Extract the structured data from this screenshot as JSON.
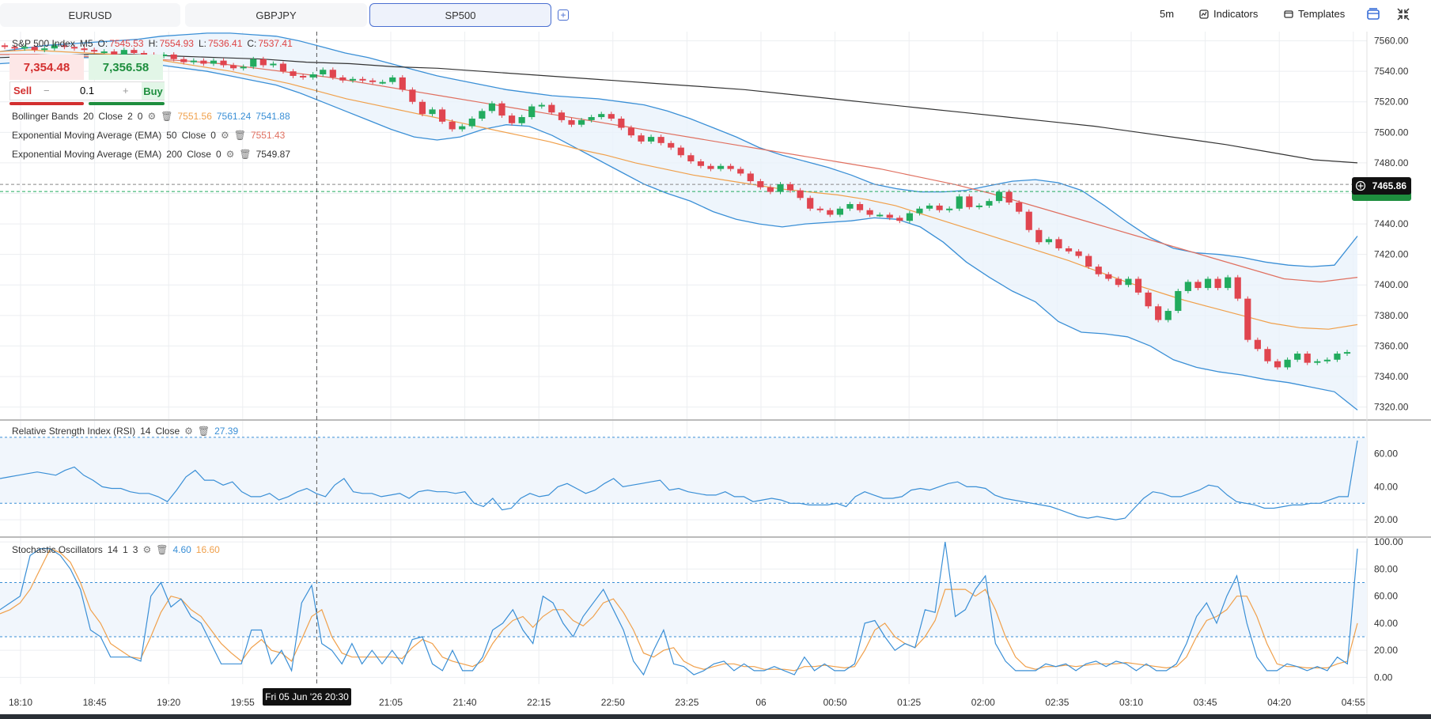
{
  "tabs": [
    {
      "label": "EURUSD",
      "active": false
    },
    {
      "label": "GBPJPY",
      "active": false
    },
    {
      "label": "SP500",
      "active": true
    }
  ],
  "add_tab_label": "+",
  "toolbar": {
    "timeframe": "5m",
    "indicators_label": "Indicators",
    "templates_label": "Templates"
  },
  "symbol_legend": {
    "name": "S&P 500 Index",
    "timeframe": "M5",
    "open_label": "O:",
    "open": "7545.53",
    "high_label": "H:",
    "high": "7554.93",
    "low_label": "L:",
    "low": "7536.41",
    "close_label": "C:",
    "close": "7537.41"
  },
  "trade_panel": {
    "sell_price": "7,354.48",
    "buy_price": "7,356.58",
    "sell_label": "Sell",
    "buy_label": "Buy",
    "quantity": "0.1",
    "minus": "−",
    "plus": "+"
  },
  "indicators": {
    "bb": {
      "name": "Bollinger Bands",
      "p1": "20",
      "p2": "Close",
      "p3": "2",
      "p4": "0",
      "v1": "7551.56",
      "v2": "7561.24",
      "v3": "7541.88"
    },
    "ema50": {
      "name": "Exponential Moving Average (EMA)",
      "p1": "50",
      "p2": "Close",
      "p3": "0",
      "v1": "7551.43"
    },
    "ema200": {
      "name": "Exponential Moving Average (EMA)",
      "p1": "200",
      "p2": "Close",
      "p3": "0",
      "v1": "7549.87"
    },
    "rsi": {
      "name": "Relative Strength Index (RSI)",
      "p1": "14",
      "p2": "Close",
      "v1": "27.39"
    },
    "stoch": {
      "name": "Stochastic Oscillators",
      "p1": "14",
      "p2": "1",
      "p3": "3",
      "v1": "4.60",
      "v2": "16.60"
    }
  },
  "current_price": "7465.86",
  "crosshair_date": "Fri 05 Jun '26 20:30",
  "colors": {
    "up": "#22ab5e",
    "down": "#e0454f",
    "bb": "#3a8fd6",
    "ema50": "#f0a04b",
    "ema200": "#e07060",
    "ema_long": "#333333",
    "rsi": "#3a8fd6",
    "stoch_k": "#3a8fd6",
    "stoch_d": "#f0a04b"
  },
  "chart_data": {
    "type": "candlestick",
    "x_ticks": [
      "18:10",
      "18:45",
      "19:20",
      "19:55",
      "20:30",
      "21:05",
      "21:40",
      "22:15",
      "22:50",
      "23:25",
      "06",
      "00:50",
      "01:25",
      "02:00",
      "02:35",
      "03:10",
      "03:45",
      "04:20",
      "04:55"
    ],
    "main_y_ticks": [
      "7560.00",
      "7540.00",
      "7520.00",
      "7500.00",
      "7480.00",
      "7460.00",
      "7440.00",
      "7420.00",
      "7400.00",
      "7380.00",
      "7360.00",
      "7340.00",
      "7320.00"
    ],
    "main_ylim": [
      7312,
      7566
    ],
    "rsi_y_ticks": [
      "60.00",
      "40.00",
      "20.00"
    ],
    "rsi_ylim": [
      10,
      80
    ],
    "rsi_levels": [
      70,
      30
    ],
    "stoch_y_ticks": [
      "100.00",
      "80.00",
      "60.00",
      "40.00",
      "20.00",
      "0.00"
    ],
    "stoch_ylim": [
      -5,
      103
    ],
    "stoch_levels": [
      70,
      30
    ],
    "candles_close": [
      7556,
      7555,
      7556,
      7554,
      7555,
      7557,
      7556,
      7555,
      7554,
      7553,
      7553,
      7551,
      7554,
      7552,
      7551,
      7550,
      7551,
      7548,
      7546,
      7547,
      7545,
      7547,
      7544,
      7542,
      7543,
      7548,
      7544,
      7545,
      7540,
      7537,
      7536,
      7538,
      7541,
      7536,
      7534,
      7535,
      7534,
      7533,
      7533,
      7536,
      7528,
      7520,
      7512,
      7515,
      7507,
      7502,
      7504,
      7509,
      7514,
      7519,
      7511,
      7506,
      7510,
      7517,
      7518,
      7513,
      7508,
      7505,
      7508,
      7510,
      7512,
      7509,
      7503,
      7498,
      7494,
      7497,
      7493,
      7490,
      7485,
      7481,
      7478,
      7476,
      7478,
      7476,
      7473,
      7468,
      7464,
      7461,
      7466,
      7462,
      7457,
      7450,
      7449,
      7446,
      7450,
      7453,
      7449,
      7446,
      7446,
      7444,
      7442,
      7447,
      7450,
      7452,
      7449,
      7450,
      7458,
      7451,
      7452,
      7455,
      7461,
      7454,
      7448,
      7436,
      7428,
      7430,
      7424,
      7422,
      7419,
      7412,
      7407,
      7404,
      7400,
      7404,
      7395,
      7386,
      7377,
      7383,
      7396,
      7402,
      7398,
      7404,
      7398,
      7405,
      7391,
      7364,
      7358,
      7350,
      7346,
      7351,
      7355,
      7349,
      7350,
      7351,
      7355,
      7356
    ],
    "rsi": [
      45,
      46,
      47,
      48,
      49,
      48,
      47,
      50,
      52,
      47,
      44,
      40,
      39,
      39,
      37,
      36,
      36,
      34,
      31,
      38,
      46,
      50,
      44,
      44,
      41,
      43,
      37,
      34,
      34,
      36,
      32,
      34,
      37,
      39,
      36,
      34,
      41,
      45,
      37,
      36,
      36,
      34,
      35,
      36,
      33,
      37,
      38,
      37,
      37,
      36,
      37,
      30,
      28,
      33,
      26,
      27,
      33,
      36,
      34,
      35,
      40,
      42,
      39,
      36,
      38,
      42,
      45,
      40,
      41,
      42,
      43,
      44,
      38,
      39,
      37,
      36,
      35,
      35,
      37,
      34,
      34,
      31,
      32,
      33,
      32,
      30,
      30,
      29,
      29,
      29,
      30,
      28,
      34,
      37,
      35,
      33,
      33,
      34,
      38,
      39,
      38,
      40,
      42,
      43,
      40,
      40,
      39,
      35,
      33,
      32,
      31,
      30,
      29,
      28,
      26,
      24,
      22,
      21,
      22,
      21,
      20,
      21,
      27,
      33,
      37,
      36,
      34,
      34,
      36,
      38,
      41,
      40,
      35,
      31,
      30,
      29,
      27,
      27,
      28,
      29,
      29,
      30,
      30,
      32,
      34,
      34,
      68
    ],
    "stoch_k": [
      50,
      55,
      60,
      90,
      95,
      95,
      90,
      80,
      65,
      35,
      30,
      15,
      15,
      15,
      12,
      60,
      70,
      52,
      58,
      45,
      40,
      25,
      10,
      10,
      10,
      35,
      35,
      10,
      20,
      5,
      55,
      68,
      25,
      20,
      10,
      25,
      10,
      20,
      10,
      20,
      10,
      28,
      30,
      10,
      5,
      20,
      5,
      5,
      15,
      35,
      40,
      50,
      35,
      25,
      60,
      55,
      40,
      30,
      45,
      55,
      65,
      50,
      35,
      12,
      2,
      20,
      35,
      10,
      8,
      2,
      5,
      10,
      12,
      5,
      10,
      5,
      5,
      8,
      5,
      2,
      15,
      5,
      10,
      5,
      5,
      10,
      40,
      42,
      30,
      20,
      25,
      22,
      50,
      48,
      100,
      45,
      50,
      65,
      75,
      25,
      12,
      5,
      5,
      5,
      10,
      8,
      10,
      5,
      10,
      12,
      8,
      12,
      10,
      5,
      10,
      5,
      5,
      10,
      25,
      45,
      55,
      40,
      60,
      75,
      40,
      15,
      5,
      5,
      10,
      8,
      5,
      8,
      5,
      15,
      10,
      95
    ],
    "stoch_d": [
      47,
      50,
      55,
      65,
      80,
      95,
      92,
      85,
      70,
      50,
      40,
      25,
      20,
      15,
      14,
      30,
      48,
      60,
      58,
      50,
      45,
      35,
      25,
      18,
      12,
      22,
      28,
      20,
      18,
      12,
      28,
      45,
      50,
      30,
      18,
      15,
      15,
      15,
      15,
      15,
      14,
      22,
      28,
      25,
      15,
      12,
      10,
      8,
      12,
      25,
      35,
      42,
      45,
      37,
      45,
      50,
      50,
      42,
      38,
      45,
      55,
      58,
      48,
      35,
      18,
      15,
      20,
      22,
      12,
      8,
      6,
      8,
      10,
      10,
      8,
      8,
      6,
      6,
      6,
      5,
      8,
      8,
      9,
      8,
      7,
      8,
      20,
      35,
      40,
      30,
      25,
      22,
      30,
      42,
      65,
      65,
      65,
      60,
      65,
      50,
      30,
      15,
      8,
      6,
      8,
      8,
      9,
      8,
      9,
      10,
      10,
      10,
      11,
      10,
      9,
      8,
      7,
      8,
      15,
      30,
      42,
      45,
      50,
      60,
      60,
      45,
      25,
      10,
      8,
      8,
      7,
      7,
      7,
      10,
      12,
      40
    ],
    "bb_upper": [
      7553,
      7555,
      7557,
      7558,
      7559,
      7560,
      7561,
      7563,
      7564,
      7565,
      7565,
      7564,
      7563,
      7560,
      7556,
      7552,
      7549,
      7545,
      7541,
      7537,
      7534,
      7531,
      7528,
      7526,
      7524,
      7523,
      7522,
      7520,
      7518,
      7514,
      7509,
      7503,
      7497,
      7490,
      7485,
      7481,
      7477,
      7472,
      7466,
      7463,
      7461,
      7461,
      7462,
      7465,
      7468,
      7469,
      7467,
      7462,
      7452,
      7441,
      7431,
      7424,
      7421,
      7420,
      7418,
      7415,
      7413,
      7412,
      7413,
      7432
    ],
    "bb_lower": [
      7545,
      7546,
      7548,
      7549,
      7549,
      7548,
      7546,
      7544,
      7542,
      7540,
      7537,
      7534,
      7531,
      7526,
      7520,
      7514,
      7508,
      7502,
      7497,
      7495,
      7497,
      7502,
      7505,
      7504,
      7498,
      7490,
      7482,
      7474,
      7466,
      7460,
      7455,
      7448,
      7443,
      7440,
      7438,
      7440,
      7441,
      7442,
      7444,
      7443,
      7438,
      7428,
      7415,
      7405,
      7396,
      7389,
      7376,
      7369,
      7368,
      7366,
      7360,
      7351,
      7346,
      7343,
      7341,
      7338,
      7336,
      7333,
      7330,
      7318
    ],
    "ema50": [
      7553,
      7554,
      7553,
      7552,
      7551,
      7549,
      7546,
      7543,
      7540,
      7536,
      7532,
      7527,
      7522,
      7518,
      7514,
      7510,
      7506,
      7502,
      7498,
      7494,
      7489,
      7485,
      7480,
      7476,
      7472,
      7469,
      7466,
      7463,
      7461,
      7459,
      7456,
      7452,
      7446,
      7440,
      7434,
      7428,
      7422,
      7416,
      7409,
      7402,
      7396,
      7390,
      7385,
      7380,
      7375,
      7372,
      7371,
      7374
    ],
    "ema200": [
      7551,
      7551,
      7550,
      7549,
      7548,
      7547,
      7545,
      7542,
      7539,
      7536,
      7532,
      7528,
      7524,
      7520,
      7516,
      7512,
      7508,
      7504,
      7500,
      7496,
      7492,
      7488,
      7484,
      7480,
      7476,
      7471,
      7466,
      7460,
      7453,
      7446,
      7439,
      7432,
      7425,
      7418,
      7411,
      7404,
      7402,
      7405
    ],
    "ema_long": [
      7549,
      7550,
      7551,
      7551,
      7550,
      7549,
      7548,
      7546,
      7545,
      7543,
      7542,
      7540,
      7538,
      7536,
      7534,
      7532,
      7530,
      7528,
      7525,
      7522,
      7519,
      7516,
      7513,
      7510,
      7507,
      7504,
      7500,
      7496,
      7492,
      7487,
      7482,
      7480
    ]
  }
}
